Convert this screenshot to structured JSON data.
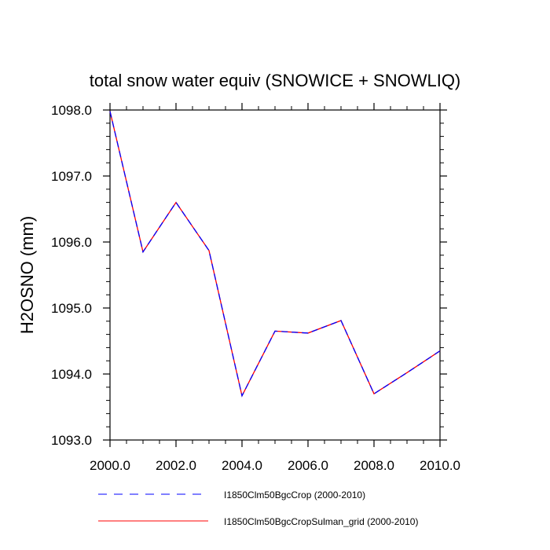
{
  "chart_data": {
    "type": "line",
    "title": "total snow water equiv (SNOWICE + SNOWLIQ)",
    "xlabel": "",
    "ylabel": "H2OSNO  (mm)",
    "xlim": [
      2000,
      2010
    ],
    "ylim": [
      1093,
      1098
    ],
    "x": [
      2000,
      2001,
      2002,
      2003,
      2004,
      2005,
      2006,
      2007,
      2008,
      2009,
      2010
    ],
    "x_ticks": [
      {
        "value": 2000,
        "label": "2000.0"
      },
      {
        "value": 2002,
        "label": "2002.0"
      },
      {
        "value": 2004,
        "label": "2004.0"
      },
      {
        "value": 2006,
        "label": "2006.0"
      },
      {
        "value": 2008,
        "label": "2008.0"
      },
      {
        "value": 2010,
        "label": "2010.0"
      }
    ],
    "y_ticks": [
      {
        "value": 1093,
        "label": "1093.0"
      },
      {
        "value": 1094,
        "label": "1094.0"
      },
      {
        "value": 1095,
        "label": "1095.0"
      },
      {
        "value": 1096,
        "label": "1096.0"
      },
      {
        "value": 1097,
        "label": "1097.0"
      },
      {
        "value": 1098,
        "label": "1098.0"
      }
    ],
    "x_minor_step": 0.5,
    "y_minor_step": 0.2,
    "grid": false,
    "legend_position": "bottom",
    "series": [
      {
        "name": "I1850Clm50BgcCrop (2000-2010)",
        "color": "#0000ff",
        "dash": "dashed",
        "values": [
          1097.98,
          1095.85,
          1096.6,
          1095.87,
          1093.67,
          1094.65,
          1094.62,
          1094.81,
          1093.7,
          1094.02,
          1094.35
        ]
      },
      {
        "name": "I1850Clm50BgcCropSulman_grid (2000-2010)",
        "color": "#ff0000",
        "dash": "solid",
        "values": [
          1097.98,
          1095.85,
          1096.6,
          1095.87,
          1093.67,
          1094.65,
          1094.62,
          1094.81,
          1093.7,
          1094.02,
          1094.35
        ]
      }
    ]
  }
}
